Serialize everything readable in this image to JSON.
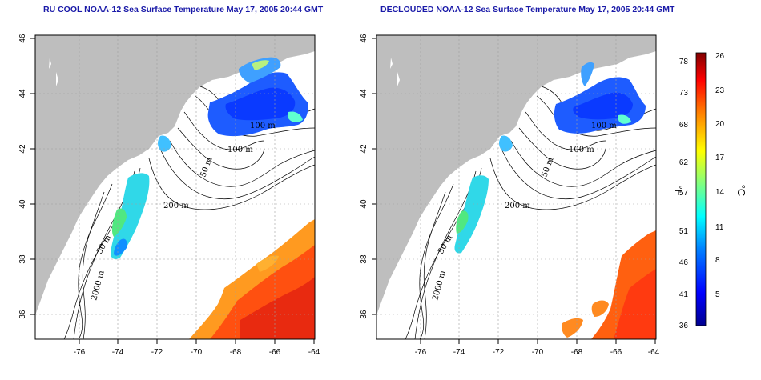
{
  "maps": [
    {
      "title": "RU COOL NOAA-12 Sea Surface Temperature May 17, 2005 20:44 GMT",
      "contour_labels": [
        "100 m",
        "100 m",
        "50 m",
        "200 m",
        "50 m",
        "2000 m"
      ]
    },
    {
      "title": "DECLOUDED NOAA-12 Sea Surface Temperature May 17, 2005 20:44 GMT",
      "contour_labels": [
        "100 m",
        "100 m",
        "50 m",
        "200 m",
        "50 m",
        "2000 m"
      ]
    }
  ],
  "axes": {
    "lon_ticks": [
      "-76",
      "-74",
      "-72",
      "-70",
      "-68",
      "-66",
      "-64"
    ],
    "lat_ticks": [
      "36",
      "38",
      "40",
      "42",
      "44",
      "46"
    ],
    "lon_range": [
      -77.2,
      -62.9
    ],
    "lat_range": [
      35.0,
      46.0
    ],
    "grid": "dotted"
  },
  "colorbar": {
    "fahrenheit_ticks": [
      "36",
      "41",
      "46",
      "51",
      "57",
      "62",
      "68",
      "73",
      "78"
    ],
    "celsius_ticks": [
      "5",
      "8",
      "11",
      "14",
      "17",
      "20",
      "23",
      "26"
    ],
    "fahrenheit_label": "°F",
    "celsius_label": "°C",
    "colors": [
      "#00008f",
      "#0000ff",
      "#0080ff",
      "#00ffff",
      "#80ff80",
      "#ffff00",
      "#ff8000",
      "#ff0000",
      "#800000"
    ]
  },
  "colors": {
    "land": "#bebebe",
    "water": "#ffffff",
    "contour": "#000000"
  }
}
